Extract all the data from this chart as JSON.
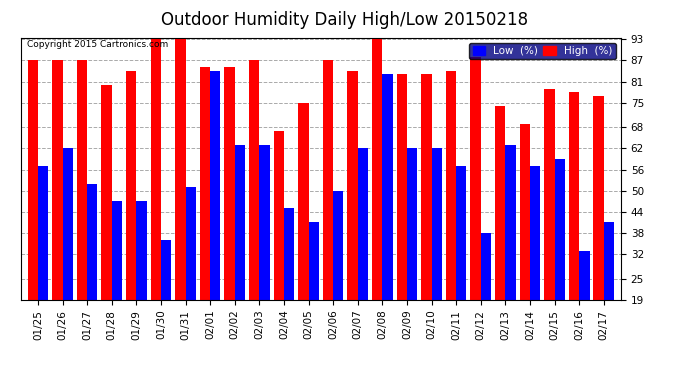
{
  "title": "Outdoor Humidity Daily High/Low 20150218",
  "copyright": "Copyright 2015 Cartronics.com",
  "dates": [
    "01/25",
    "01/26",
    "01/27",
    "01/28",
    "01/29",
    "01/30",
    "01/31",
    "02/01",
    "02/02",
    "02/03",
    "02/04",
    "02/05",
    "02/06",
    "02/07",
    "02/08",
    "02/09",
    "02/10",
    "02/11",
    "02/12",
    "02/13",
    "02/14",
    "02/15",
    "02/16",
    "02/17"
  ],
  "high": [
    87,
    87,
    87,
    80,
    84,
    93,
    93,
    85,
    85,
    87,
    67,
    75,
    87,
    84,
    94,
    83,
    83,
    84,
    88,
    74,
    69,
    79,
    78,
    77
  ],
  "low": [
    57,
    62,
    52,
    47,
    47,
    36,
    51,
    84,
    63,
    63,
    45,
    41,
    50,
    62,
    83,
    62,
    62,
    57,
    38,
    63,
    57,
    59,
    33,
    41
  ],
  "ylim_min": 19,
  "ylim_max": 93,
  "yticks": [
    19,
    25,
    32,
    38,
    44,
    50,
    56,
    62,
    68,
    75,
    81,
    87,
    93
  ],
  "bar_width": 0.42,
  "high_color": "#ff0000",
  "low_color": "#0000ff",
  "bg_color": "#ffffff",
  "grid_color": "#aaaaaa",
  "title_fontsize": 12,
  "tick_fontsize": 7.5,
  "legend_fontsize": 7.5,
  "legend_bg": "#000080"
}
